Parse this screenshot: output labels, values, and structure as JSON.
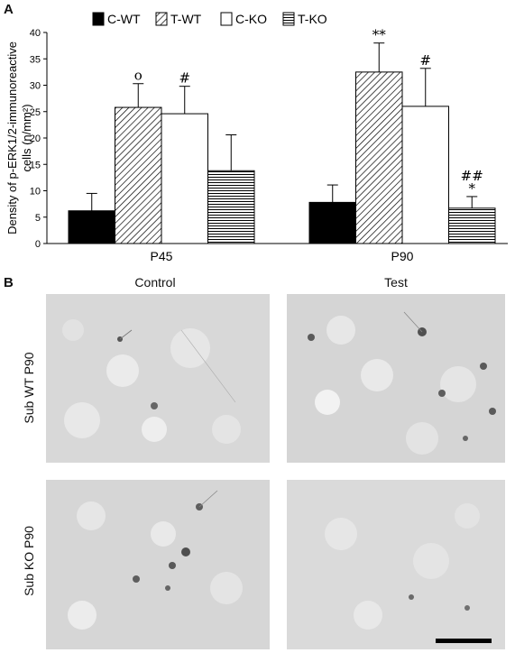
{
  "panels": {
    "a": "A",
    "b": "B"
  },
  "chart_data": {
    "type": "bar",
    "ylabel": "Density of p-ERK1/2-immunoreactive cells (n/mm²)",
    "ylim": [
      0,
      40
    ],
    "yticks": [
      0,
      5,
      10,
      15,
      20,
      25,
      30,
      35,
      40
    ],
    "categories": [
      "P45",
      "P90"
    ],
    "legend_position": "top",
    "series": [
      {
        "name": "C-WT",
        "fill": "solid-black",
        "values": [
          6.2,
          7.8
        ],
        "errors": [
          3.3,
          3.3
        ]
      },
      {
        "name": "T-WT",
        "fill": "diagonal-hatch",
        "values": [
          25.8,
          32.5
        ],
        "errors": [
          4.5,
          5.5
        ]
      },
      {
        "name": "C-KO",
        "fill": "white",
        "values": [
          24.6,
          26.0
        ],
        "errors": [
          5.2,
          7.2
        ]
      },
      {
        "name": "T-KO",
        "fill": "horizontal-lines",
        "values": [
          13.8,
          6.7
        ],
        "errors": [
          6.8,
          2.2
        ]
      }
    ],
    "annotations": [
      {
        "category": "P45",
        "series": "T-WT",
        "text": "o"
      },
      {
        "category": "P45",
        "series": "C-KO",
        "text": "#"
      },
      {
        "category": "P90",
        "series": "T-WT",
        "text": "**"
      },
      {
        "category": "P90",
        "series": "C-KO",
        "text": "#"
      },
      {
        "category": "P90",
        "series": "T-KO",
        "text": "##"
      },
      {
        "category": "P90",
        "series": "T-KO",
        "text": "*"
      }
    ]
  },
  "micrographs": {
    "columns": [
      "Control",
      "Test"
    ],
    "rows": [
      "Sub WT P90",
      "Sub KO P90"
    ]
  }
}
